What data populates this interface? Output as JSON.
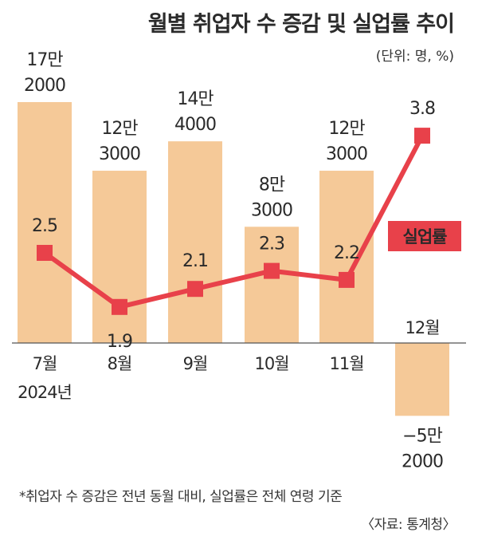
{
  "title": "월별 취업자 수 증감 및 실업률 추이",
  "unit": "(단위: 명, %)",
  "footnote": "*취업자 수 증감은 전년 동월 대비, 실업률은 전체 연령 기준",
  "source": "〈자료: 통계청〉",
  "colors": {
    "bar": "#f5c998",
    "line": "#e8414a",
    "axis": "#555555",
    "text": "#2a2a2a"
  },
  "chart_data": {
    "type": "bar",
    "title": "월별 취업자 수 증감 및 실업률 추이",
    "categories": [
      "7월",
      "8월",
      "9월",
      "10월",
      "11월",
      "12월"
    ],
    "year_label": "2024년",
    "bar_series": {
      "values": [
        172000,
        123000,
        144000,
        83000,
        123000,
        -52000
      ],
      "labels": [
        [
          "17만",
          "2000"
        ],
        [
          "12만",
          "3000"
        ],
        [
          "14만",
          "4000"
        ],
        [
          "8만",
          "3000"
        ],
        [
          "12만",
          "3000"
        ],
        [
          "−5만",
          "2000"
        ]
      ]
    },
    "line_series": {
      "name": "실업률",
      "type": "line",
      "values": [
        2.5,
        1.9,
        2.1,
        2.3,
        2.2,
        3.8
      ],
      "labels": [
        "2.5",
        "1.9",
        "2.1",
        "2.3",
        "2.2",
        "3.8"
      ]
    }
  }
}
